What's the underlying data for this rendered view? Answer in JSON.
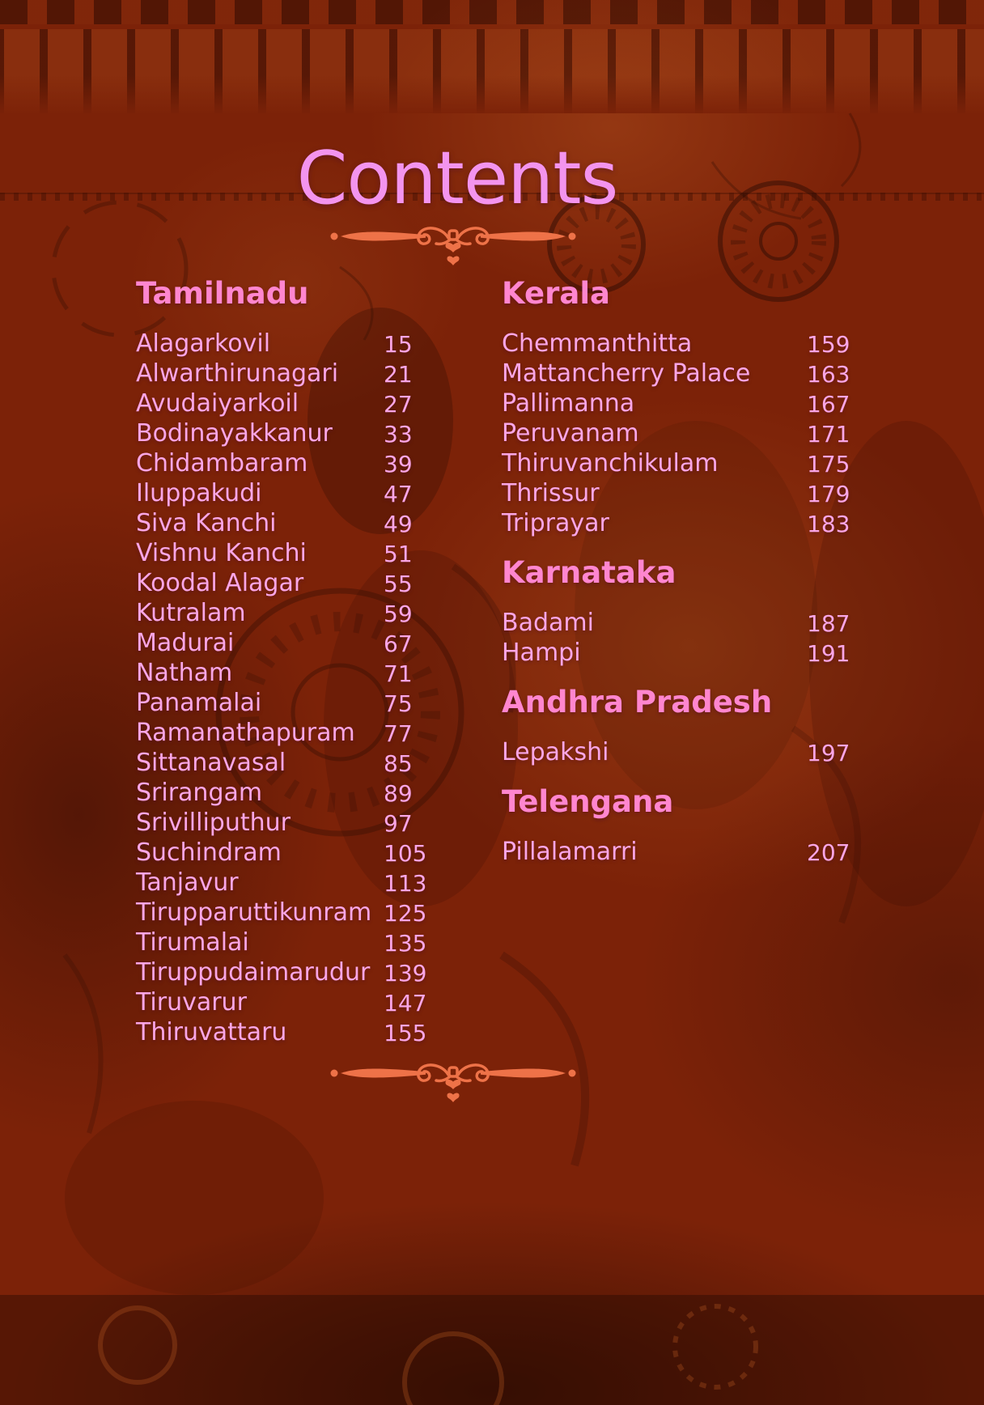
{
  "title": "Contents",
  "colors": {
    "background": "#7c2208",
    "title_text": "#f394ee",
    "section_heading": "#ff86cf",
    "entry_text": "#f9a6e6",
    "divider": "#ee7248"
  },
  "toc": {
    "left": [
      {
        "heading": "Tamilnadu",
        "items": [
          {
            "label": "Alagarkovil",
            "page": "15"
          },
          {
            "label": "Alwarthirunagari",
            "page": "21"
          },
          {
            "label": "Avudaiyarkoil",
            "page": "27"
          },
          {
            "label": "Bodinayakkanur",
            "page": "33"
          },
          {
            "label": "Chidambaram",
            "page": "39"
          },
          {
            "label": "Iluppakudi",
            "page": "47"
          },
          {
            "label": "Siva Kanchi",
            "page": "49"
          },
          {
            "label": "Vishnu Kanchi",
            "page": "51"
          },
          {
            "label": "Koodal Alagar",
            "page": "55"
          },
          {
            "label": "Kutralam",
            "page": "59"
          },
          {
            "label": "Madurai",
            "page": "67"
          },
          {
            "label": "Natham",
            "page": "71"
          },
          {
            "label": "Panamalai",
            "page": "75"
          },
          {
            "label": "Ramanathapuram",
            "page": "77"
          },
          {
            "label": "Sittanavasal",
            "page": "85"
          },
          {
            "label": "Srirangam",
            "page": "89"
          },
          {
            "label": "Srivilliputhur",
            "page": "97"
          },
          {
            "label": "Suchindram",
            "page": "105"
          },
          {
            "label": "Tanjavur",
            "page": "113"
          },
          {
            "label": "Tirupparuttikunram",
            "page": "125"
          },
          {
            "label": "Tirumalai",
            "page": "135"
          },
          {
            "label": "Tiruppudaimarudur",
            "page": "139"
          },
          {
            "label": "Tiruvarur",
            "page": "147"
          },
          {
            "label": "Thiruvattaru",
            "page": "155"
          }
        ]
      }
    ],
    "right": [
      {
        "heading": "Kerala",
        "items": [
          {
            "label": "Chemmanthitta",
            "page": "159"
          },
          {
            "label": "Mattancherry Palace",
            "page": "163"
          },
          {
            "label": "Pallimanna",
            "page": "167"
          },
          {
            "label": "Peruvanam",
            "page": "171"
          },
          {
            "label": "Thiruvanchikulam",
            "page": "175"
          },
          {
            "label": "Thrissur",
            "page": "179"
          },
          {
            "label": "Triprayar",
            "page": "183"
          }
        ]
      },
      {
        "heading": "Karnataka",
        "items": [
          {
            "label": "Badami",
            "page": "187"
          },
          {
            "label": "Hampi",
            "page": "191"
          }
        ]
      },
      {
        "heading": "Andhra Pradesh",
        "items": [
          {
            "label": "Lepakshi",
            "page": "197"
          }
        ]
      },
      {
        "heading": "Telengana",
        "items": [
          {
            "label": "Pillalamarri",
            "page": "207"
          }
        ]
      }
    ]
  }
}
